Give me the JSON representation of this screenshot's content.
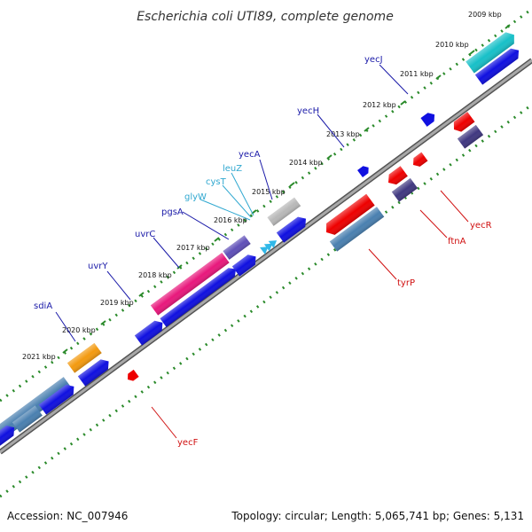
{
  "title": "Escherichia coli UTI89, complete genome",
  "footer": {
    "accession": "Accession: NC_007946",
    "summary": "Topology: circular; Length: 5,065,741 bp; Genes: 5,131"
  },
  "colors": {
    "backbone": "#8a8a8a",
    "tick": "#2a8a2a",
    "gene_blue": "#1010e0",
    "gene_red": "#ee0000",
    "gene_steel": "#4a80b0",
    "gene_navy": "#403880",
    "gene_cyan": "#18c0c8",
    "gene_magenta": "#e8187c",
    "gene_orange": "#f39a10",
    "gene_grey": "#b8b8b8",
    "gene_purple": "#6050b8",
    "label_blue": "#1a1aa8",
    "label_cyan": "#30a8d0",
    "label_red": "#d01010"
  },
  "kbp_labels": [
    "2009 kbp",
    "2010 kbp",
    "2011 kbp",
    "2012 kbp",
    "2013 kbp",
    "2014 kbp",
    "2015 kbp",
    "2016 kbp",
    "2017 kbp",
    "2018 kbp",
    "2019 kbp",
    "2020 kbp",
    "2021 kbp"
  ],
  "gene_labels": {
    "yecJ": "yecJ",
    "yecH": "yecH",
    "yecA": "yecA",
    "leuZ": "leuZ",
    "cysT": "cysT",
    "glyW": "glyW",
    "pgsA": "pgsA",
    "uvrC": "uvrC",
    "uvrY": "uvrY",
    "sdiA": "sdiA",
    "yecR": "yecR",
    "ftnA": "ftnA",
    "tyrP": "tyrP",
    "yecF": "yecF"
  }
}
